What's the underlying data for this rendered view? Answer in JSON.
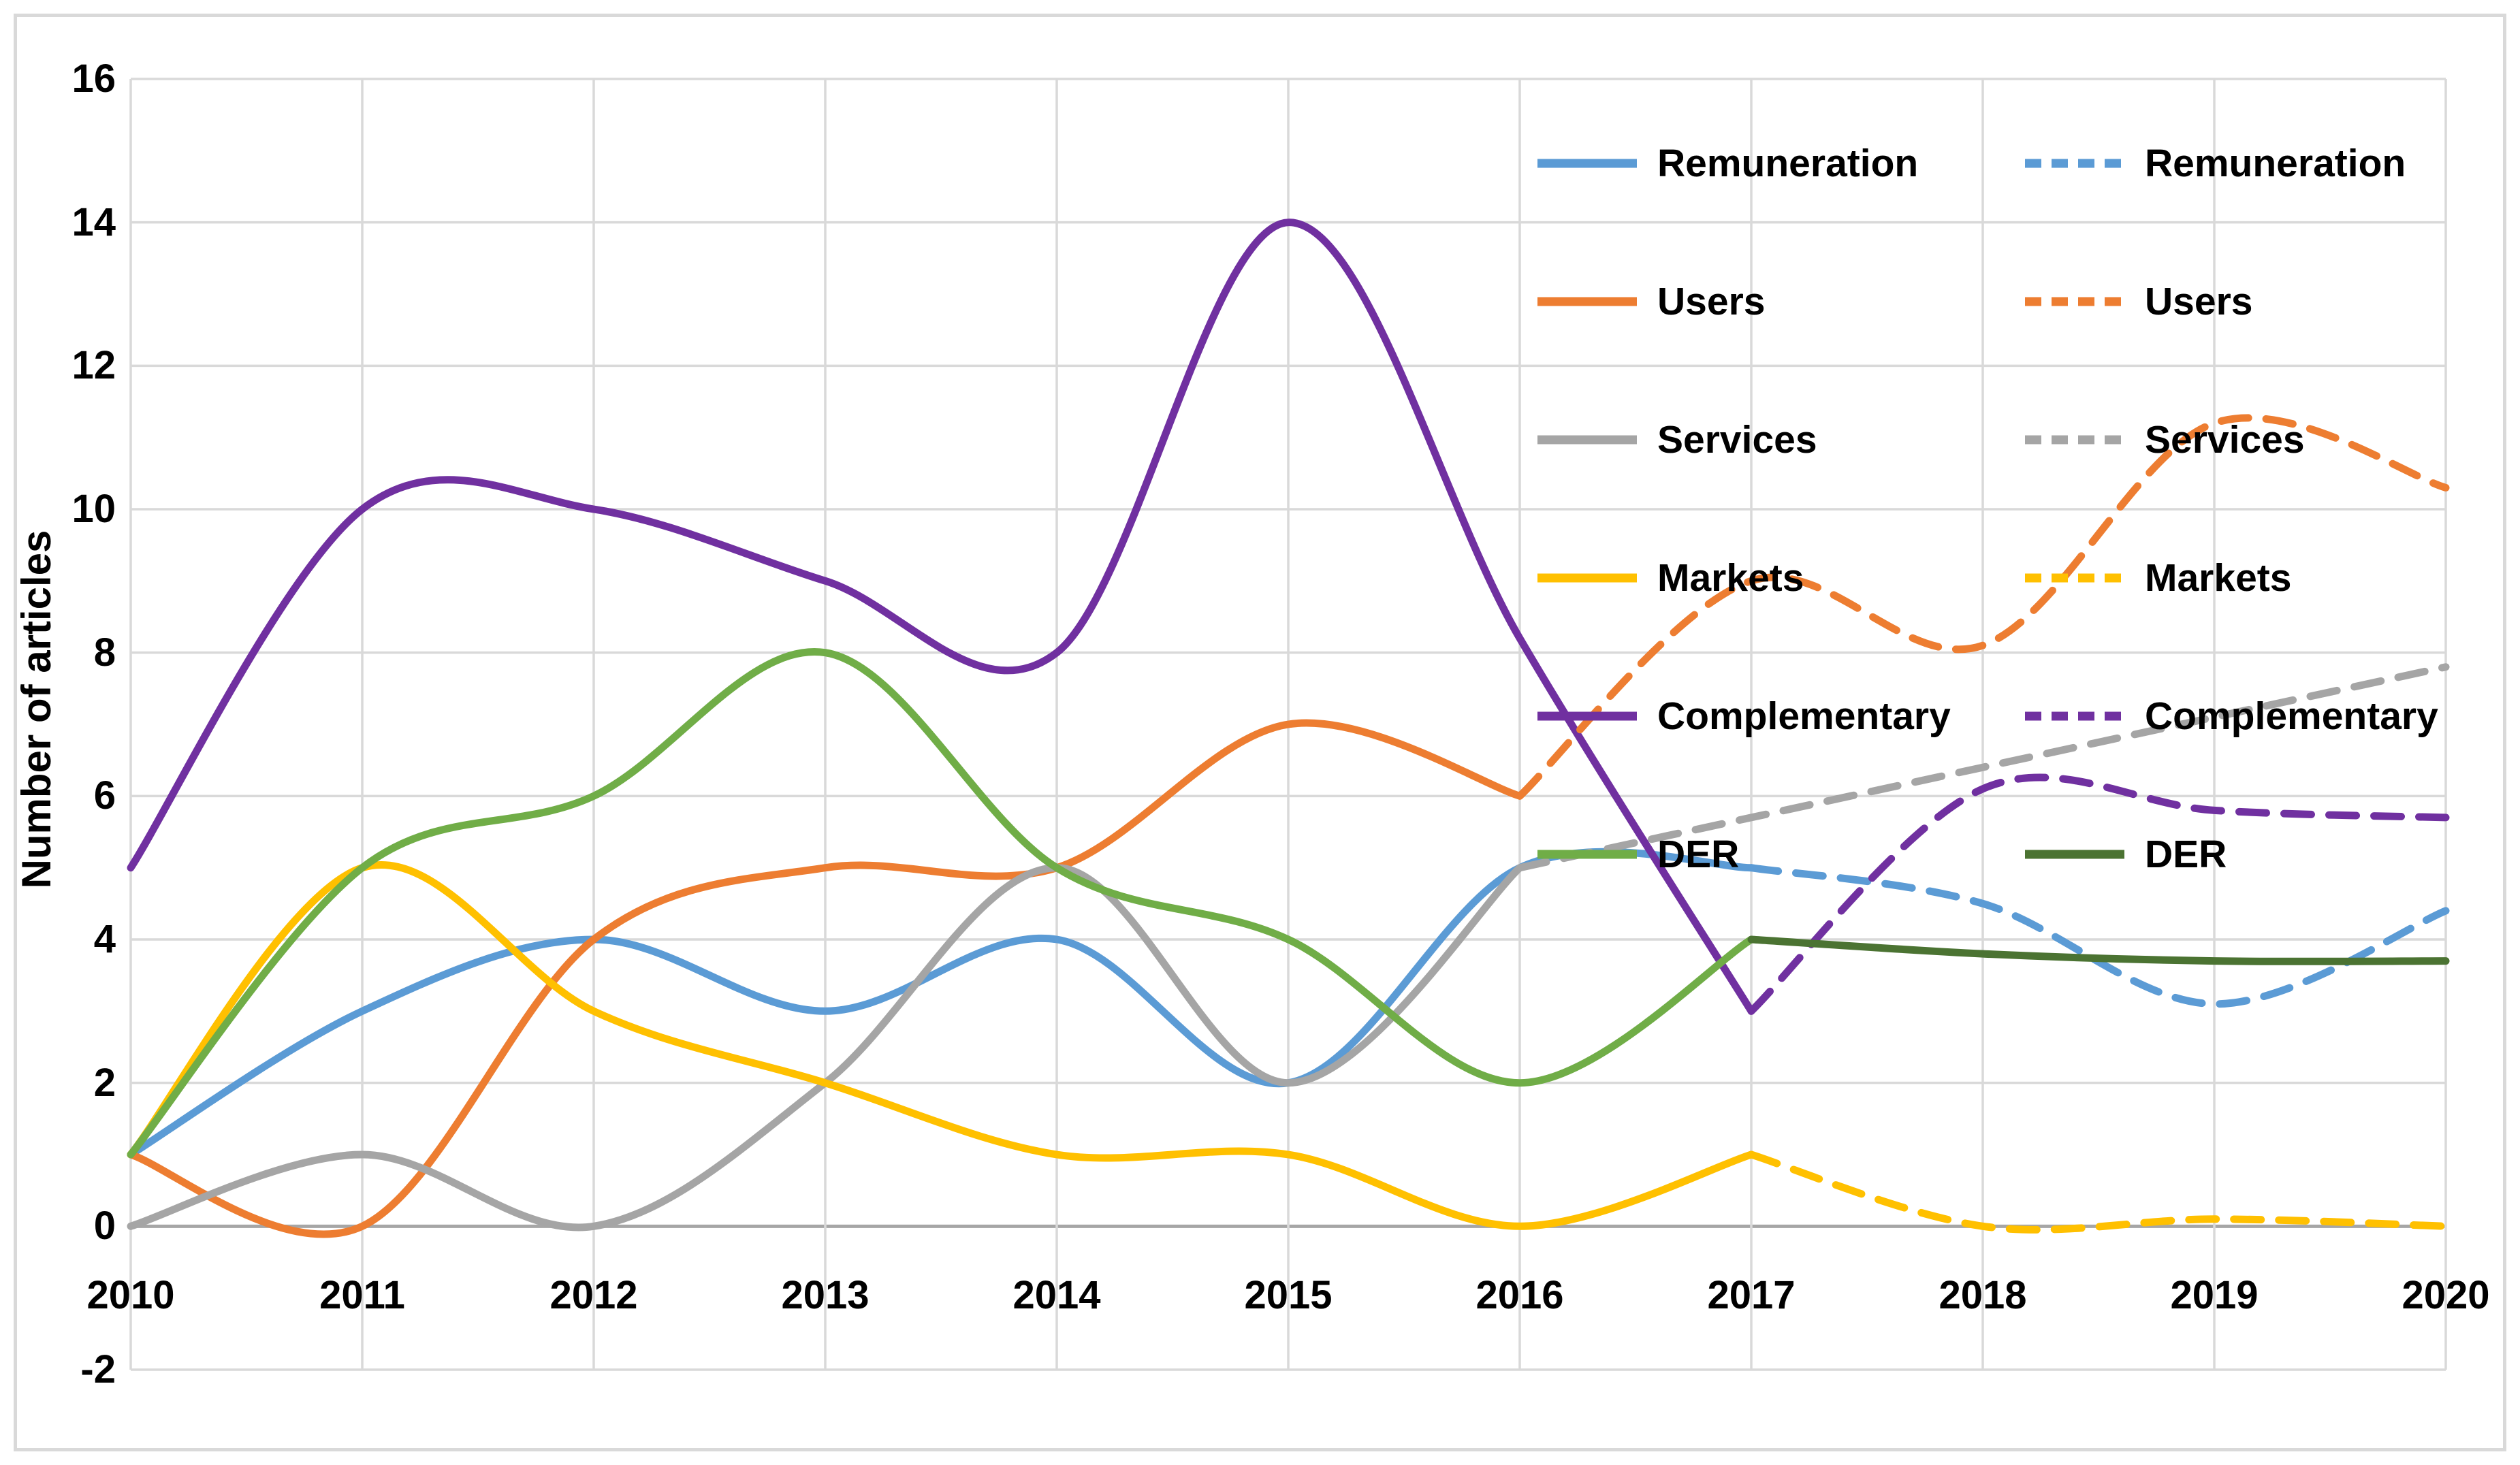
{
  "figure": {
    "background": "#FFFFFF",
    "frame_color": "#D9D9D9"
  },
  "legend": {
    "columns": [
      {
        "items": [
          {
            "label": "Remuneration",
            "color": "#5B9BD5",
            "dashed": false
          },
          {
            "label": "Users",
            "color": "#ED7D31",
            "dashed": false
          },
          {
            "label": "Services",
            "color": "#A5A5A5",
            "dashed": false
          },
          {
            "label": "Markets",
            "color": "#FFC000",
            "dashed": false
          },
          {
            "label": "Complementary",
            "color": "#7030A0",
            "dashed": false
          },
          {
            "label": "DER",
            "color": "#70AD47",
            "dashed": false
          }
        ]
      },
      {
        "items": [
          {
            "label": "Remuneration",
            "color": "#5B9BD5",
            "dashed": true
          },
          {
            "label": "Users",
            "color": "#ED7D31",
            "dashed": true
          },
          {
            "label": "Services",
            "color": "#A5A5A5",
            "dashed": true
          },
          {
            "label": "Markets",
            "color": "#FFC000",
            "dashed": true
          },
          {
            "label": "Complementary",
            "color": "#7030A0",
            "dashed": true
          },
          {
            "label": "DER",
            "color": "#4B7332",
            "dashed": false
          }
        ]
      }
    ]
  },
  "chart_data": {
    "type": "line",
    "title": "",
    "xlabel": "",
    "ylabel": "Number of articles",
    "ylim": [
      -2,
      16
    ],
    "y_ticks": [
      16,
      14,
      12,
      10,
      8,
      6,
      4,
      2,
      0,
      -2
    ],
    "x_ticks": [
      2010,
      2011,
      2012,
      2013,
      2014,
      2015,
      2016,
      2017,
      2018,
      2019,
      2020
    ],
    "grid": true,
    "grid_color": "#D9D9D9",
    "zero_line_color": "#A6A6A6",
    "legend_position": "top-right-inside",
    "series": [
      {
        "name": "Remuneration",
        "style": "solid",
        "color": "#5B9BD5",
        "years": [
          2010,
          2011,
          2012,
          2013,
          2014,
          2015,
          2016,
          2017
        ],
        "values": [
          1,
          3,
          4,
          3,
          4,
          2,
          5,
          5
        ]
      },
      {
        "name": "Users",
        "style": "solid",
        "color": "#ED7D31",
        "years": [
          2010,
          2011,
          2012,
          2013,
          2014,
          2015,
          2016
        ],
        "values": [
          1,
          0,
          4,
          5,
          5,
          7,
          6
        ]
      },
      {
        "name": "Services",
        "style": "solid",
        "color": "#A5A5A5",
        "years": [
          2010,
          2011,
          2012,
          2013,
          2014,
          2015,
          2016
        ],
        "values": [
          0,
          1,
          0,
          2,
          5,
          2,
          5
        ]
      },
      {
        "name": "Markets",
        "style": "solid",
        "color": "#FFC000",
        "years": [
          2010,
          2011,
          2012,
          2013,
          2014,
          2015,
          2016,
          2017
        ],
        "values": [
          1,
          5,
          3,
          2,
          1,
          1,
          0,
          1
        ]
      },
      {
        "name": "Complementary",
        "style": "solid",
        "color": "#7030A0",
        "years": [
          2010,
          2011,
          2012,
          2013,
          2014,
          2015,
          2016,
          2017
        ],
        "values": [
          5,
          10,
          10,
          9,
          8,
          14,
          8.2,
          3
        ]
      },
      {
        "name": "DER",
        "style": "solid",
        "color": "#70AD47",
        "years": [
          2010,
          2011,
          2012,
          2013,
          2014,
          2015,
          2016,
          2017
        ],
        "values": [
          1,
          5,
          6,
          8,
          5,
          4,
          2,
          4
        ]
      },
      {
        "name": "Remuneration",
        "style": "dashed",
        "color": "#5B9BD5",
        "years": [
          2017,
          2018,
          2019,
          2020
        ],
        "values": [
          5,
          4.5,
          3.1,
          4.4
        ]
      },
      {
        "name": "Users",
        "style": "dashed",
        "color": "#ED7D31",
        "years": [
          2016,
          2017,
          2018,
          2019,
          2020
        ],
        "values": [
          6,
          9,
          8.1,
          11.2,
          10.3
        ]
      },
      {
        "name": "Services",
        "style": "dashed",
        "color": "#A5A5A5",
        "years": [
          2016,
          2017,
          2018,
          2019,
          2020
        ],
        "values": [
          5,
          5.7,
          6.4,
          7.1,
          7.8
        ]
      },
      {
        "name": "Markets",
        "style": "dashed",
        "color": "#FFC000",
        "years": [
          2017,
          2018,
          2019,
          2020
        ],
        "values": [
          1,
          0,
          0.1,
          0
        ]
      },
      {
        "name": "Complementary",
        "style": "dashed",
        "color": "#7030A0",
        "years": [
          2017,
          2018,
          2019,
          2020
        ],
        "values": [
          3,
          6.1,
          5.8,
          5.7
        ]
      },
      {
        "name": "DER",
        "style": "solid",
        "color": "#4B7332",
        "years": [
          2017,
          2018,
          2019,
          2020
        ],
        "values": [
          4,
          3.8,
          3.7,
          3.7
        ]
      }
    ]
  }
}
